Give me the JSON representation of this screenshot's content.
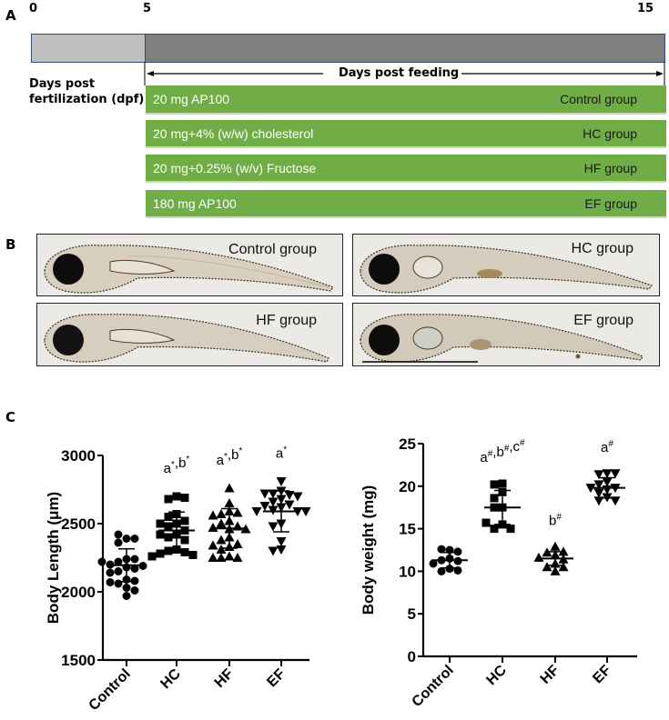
{
  "panel_a": {
    "letter": "A",
    "timeline_ticks": [
      "0",
      "5",
      "15"
    ],
    "dpf_label_line1": "Days post",
    "dpf_label_line2": "fertilization (dpf)",
    "feeding_label": "Days post feeding",
    "colors": {
      "light_bar": "#bfbfbf",
      "dark_bar": "#7f7f7f",
      "group_bar": "#70ad47"
    },
    "groups": [
      {
        "diet": "20 mg AP100",
        "name": "Control group"
      },
      {
        "diet": "20 mg+4% (w/w) cholesterol",
        "name": "HC group"
      },
      {
        "diet": "20 mg+0.25% (w/v) Fructose",
        "name": "HF group"
      },
      {
        "diet": "180 mg AP100",
        "name": "EF group"
      }
    ]
  },
  "panel_b": {
    "letter": "B",
    "images": [
      {
        "label": "Control group"
      },
      {
        "label": "HC group"
      },
      {
        "label": "HF group"
      },
      {
        "label": "EF group"
      }
    ]
  },
  "panel_c": {
    "letter": "C"
  },
  "chart_data": [
    {
      "type": "scatter",
      "title": "",
      "xlabel": "",
      "ylabel": "Body Length (μm)",
      "categories": [
        "Control",
        "HC",
        "HF",
        "EF"
      ],
      "ylim": [
        1500,
        3000
      ],
      "yticks": [
        "1500",
        "2000",
        "2500",
        "3000"
      ],
      "markers": [
        "circle",
        "square",
        "triangle-up",
        "triangle-down"
      ],
      "annotations": [
        {
          "category": "Control",
          "text": ""
        },
        {
          "category": "HC",
          "text": "a*,b*"
        },
        {
          "category": "HF",
          "text": "a*,b*"
        },
        {
          "category": "EF",
          "text": "a*"
        }
      ],
      "series": [
        {
          "name": "Control",
          "mean": 2195,
          "sd": 120,
          "values": [
            2390,
            2360,
            2390,
            2420,
            2240,
            2220,
            2240,
            2200,
            2190,
            2220,
            2180,
            2150,
            2170,
            2140,
            2090,
            2060,
            2080,
            2070,
            2030,
            2010,
            1970
          ]
        },
        {
          "name": "HC",
          "mean": 2450,
          "sd": 135,
          "values": [
            2700,
            2680,
            2690,
            2570,
            2550,
            2520,
            2500,
            2480,
            2500,
            2450,
            2420,
            2400,
            2420,
            2380,
            2310,
            2300,
            2290,
            2280,
            2270,
            2260
          ]
        },
        {
          "name": "HF",
          "mean": 2465,
          "sd": 145,
          "values": [
            2760,
            2650,
            2590,
            2570,
            2580,
            2560,
            2520,
            2500,
            2480,
            2460,
            2470,
            2460,
            2400,
            2380,
            2350,
            2330,
            2310,
            2340,
            2260,
            2250,
            2250,
            2250
          ]
        },
        {
          "name": "EF",
          "mean": 2590,
          "sd": 150,
          "values": [
            2810,
            2740,
            2720,
            2710,
            2720,
            2700,
            2680,
            2660,
            2640,
            2630,
            2620,
            2600,
            2590,
            2590,
            2590,
            2500,
            2480,
            2370,
            2310,
            2300
          ]
        }
      ]
    },
    {
      "type": "scatter",
      "title": "",
      "xlabel": "",
      "ylabel": "Body weight (mg)",
      "categories": [
        "Control",
        "HC",
        "HF",
        "EF"
      ],
      "ylim": [
        0,
        25
      ],
      "yticks": [
        "0",
        "5",
        "10",
        "15",
        "20",
        "25"
      ],
      "markers": [
        "circle",
        "square",
        "triangle-up",
        "triangle-down"
      ],
      "annotations": [
        {
          "category": "Control",
          "text": ""
        },
        {
          "category": "HC",
          "text": "a#,b#,c#"
        },
        {
          "category": "HF",
          "text": "b#"
        },
        {
          "category": "EF",
          "text": "a#"
        }
      ],
      "series": [
        {
          "name": "Control",
          "mean": 11.3,
          "sd": 0.9,
          "values": [
            12.5,
            12.6,
            12.3,
            11.5,
            11.3,
            11.2,
            10.9,
            10.3,
            10.0,
            10.1
          ]
        },
        {
          "name": "HC",
          "mean": 17.5,
          "sd": 2.0,
          "values": [
            20.3,
            20.2,
            19.3,
            18.6,
            17.5,
            17.5,
            15.5,
            15.0,
            15.0,
            15.7
          ]
        },
        {
          "name": "HF",
          "mean": 11.5,
          "sd": 0.8,
          "values": [
            12.9,
            12.2,
            12.3,
            11.9,
            11.6,
            11.4,
            10.9,
            10.5,
            10.5,
            10.0
          ]
        },
        {
          "name": "EF",
          "mean": 19.8,
          "sd": 1.2,
          "values": [
            21.5,
            21.4,
            21.5,
            20.5,
            20.2,
            19.8,
            19.8,
            19.6,
            19.2,
            18.7,
            18.3,
            18.3
          ]
        }
      ]
    }
  ]
}
